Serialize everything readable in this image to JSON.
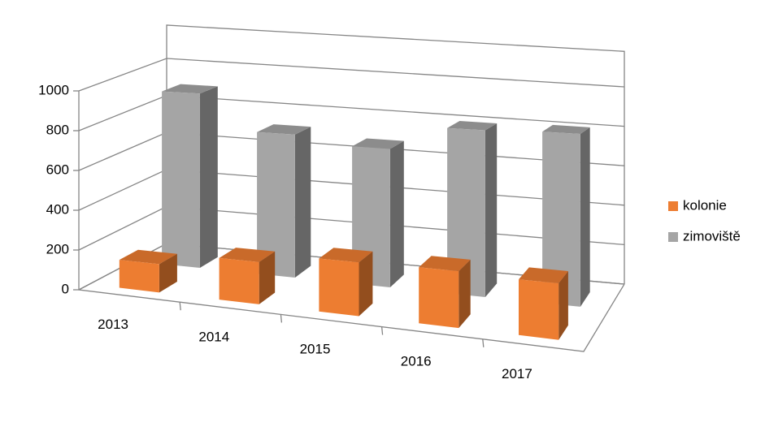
{
  "chart_data": {
    "type": "bar3d",
    "categories": [
      "2013",
      "2014",
      "2015",
      "2016",
      "2017"
    ],
    "series": [
      {
        "name": "kolonie",
        "color": "#ED7D31",
        "values": [
          140,
          200,
          245,
          250,
          240
        ]
      },
      {
        "name": "zimoviště",
        "color": "#A5A5A5",
        "values": [
          900,
          720,
          680,
          800,
          810
        ]
      }
    ],
    "ylim": [
      0,
      1000
    ],
    "yticks": [
      0,
      200,
      400,
      600,
      800,
      1000
    ],
    "grid": true,
    "legend": "right"
  }
}
